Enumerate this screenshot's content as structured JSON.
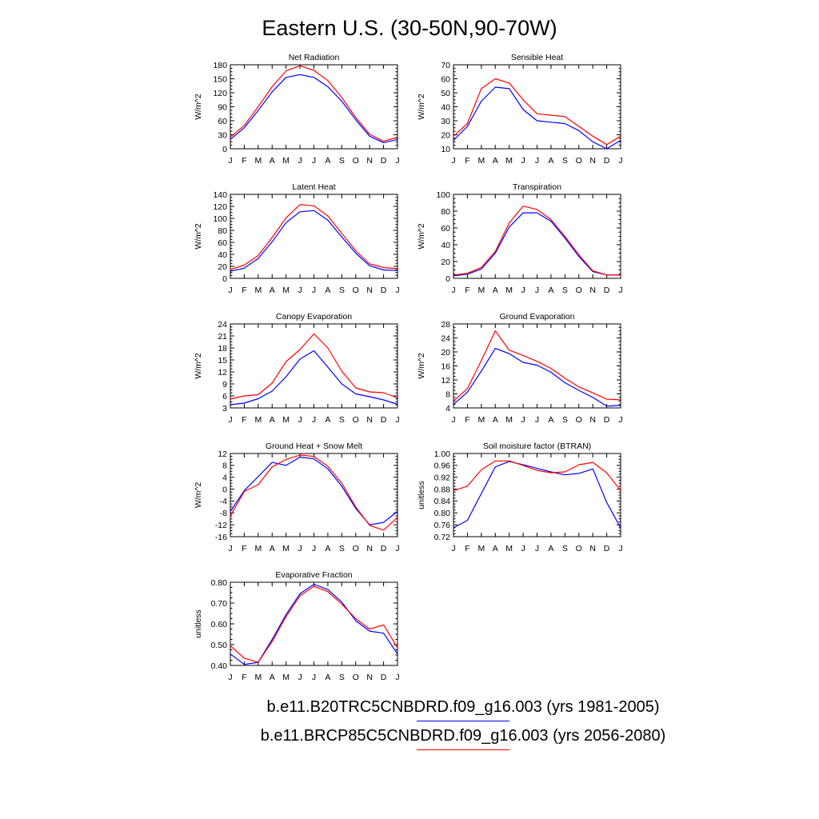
{
  "title": "Eastern U.S. (30-50N,90-70W)",
  "colors": {
    "series_1": "#0000ff",
    "series_2": "#ff0000",
    "axes": "#000000"
  },
  "legend": [
    {
      "label": "b.e11.B20TRC5CNBDRD.f09_g16.003 (yrs 1981-2005)",
      "color": "#0000ff"
    },
    {
      "label": "b.e11.BRCP85C5CNBDRD.f09_g16.003 (yrs 2056-2080)",
      "color": "#ff0000"
    }
  ],
  "chart_data": [
    {
      "type": "line",
      "title": "Net Radiation",
      "ylabel": "W/m^2",
      "categories": [
        "J",
        "F",
        "M",
        "A",
        "M",
        "J",
        "J",
        "A",
        "S",
        "O",
        "N",
        "D",
        "J"
      ],
      "ylim": [
        0,
        180
      ],
      "yticks": [
        "0",
        "30",
        "60",
        "90",
        "120",
        "150",
        "180"
      ],
      "series": [
        {
          "color": "#0000ff",
          "values": [
            20,
            45,
            82,
            122,
            153,
            159,
            153,
            133,
            102,
            62,
            27,
            13,
            20
          ]
        },
        {
          "color": "#ff0000",
          "values": [
            25,
            50,
            90,
            133,
            167,
            178,
            168,
            146,
            110,
            67,
            31,
            16,
            25
          ]
        }
      ]
    },
    {
      "type": "line",
      "title": "Sensible Heat",
      "ylabel": "W/m^2",
      "categories": [
        "J",
        "F",
        "M",
        "A",
        "M",
        "J",
        "J",
        "A",
        "S",
        "O",
        "N",
        "D",
        "J"
      ],
      "ylim": [
        10,
        70
      ],
      "yticks": [
        "10",
        "20",
        "30",
        "40",
        "50",
        "60",
        "70"
      ],
      "series": [
        {
          "color": "#0000ff",
          "values": [
            16,
            26,
            44,
            54,
            53,
            38,
            30,
            29,
            28,
            23,
            15,
            10,
            16
          ]
        },
        {
          "color": "#ff0000",
          "values": [
            19,
            28,
            53,
            60,
            57,
            45,
            35,
            34,
            33,
            26,
            19,
            13,
            19
          ]
        }
      ]
    },
    {
      "type": "line",
      "title": "Latent Heat",
      "ylabel": "W/m^2",
      "categories": [
        "J",
        "F",
        "M",
        "A",
        "M",
        "J",
        "J",
        "A",
        "S",
        "O",
        "N",
        "D",
        "J"
      ],
      "ylim": [
        0,
        140
      ],
      "yticks": [
        "0",
        "20",
        "40",
        "60",
        "80",
        "100",
        "120",
        "140"
      ],
      "series": [
        {
          "color": "#0000ff",
          "values": [
            12,
            17,
            33,
            61,
            93,
            111,
            113,
            97,
            69,
            42,
            21,
            14,
            13
          ]
        },
        {
          "color": "#ff0000",
          "values": [
            15,
            22,
            38,
            68,
            101,
            123,
            121,
            104,
            75,
            46,
            24,
            18,
            16
          ]
        }
      ]
    },
    {
      "type": "line",
      "title": "Transpiration",
      "ylabel": "W/m^2",
      "categories": [
        "J",
        "F",
        "M",
        "A",
        "M",
        "J",
        "J",
        "A",
        "S",
        "O",
        "N",
        "D",
        "J"
      ],
      "ylim": [
        0,
        100
      ],
      "yticks": [
        "0",
        "20",
        "40",
        "60",
        "80",
        "100"
      ],
      "series": [
        {
          "color": "#0000ff",
          "values": [
            3,
            5,
            11,
            30,
            61,
            78,
            78,
            68,
            48,
            26,
            8,
            4,
            4
          ]
        },
        {
          "color": "#ff0000",
          "values": [
            4,
            6,
            13,
            32,
            66,
            86,
            82,
            70,
            50,
            28,
            9,
            4,
            4
          ]
        }
      ]
    },
    {
      "type": "line",
      "title": "Canopy Evaporation",
      "ylabel": "W/m^2",
      "categories": [
        "J",
        "F",
        "M",
        "A",
        "M",
        "J",
        "J",
        "A",
        "S",
        "O",
        "N",
        "D",
        "J"
      ],
      "ylim": [
        3,
        24
      ],
      "yticks": [
        "3",
        "6",
        "9",
        "12",
        "15",
        "18",
        "21",
        "24"
      ],
      "series": [
        {
          "color": "#0000ff",
          "values": [
            3.8,
            4.2,
            5.3,
            7.2,
            10.8,
            15.2,
            17.3,
            13.2,
            9.0,
            6.5,
            5.8,
            5.0,
            3.9
          ]
        },
        {
          "color": "#ff0000",
          "values": [
            5.2,
            6.0,
            6.3,
            9.2,
            14.6,
            17.6,
            21.5,
            18.0,
            12.2,
            8.0,
            7.0,
            6.8,
            5.5
          ]
        }
      ]
    },
    {
      "type": "line",
      "title": "Ground Evaporation",
      "ylabel": "W/m^2",
      "categories": [
        "J",
        "F",
        "M",
        "A",
        "M",
        "J",
        "J",
        "A",
        "S",
        "O",
        "N",
        "D",
        "J"
      ],
      "ylim": [
        4,
        28
      ],
      "yticks": [
        "4",
        "8",
        "12",
        "16",
        "20",
        "24",
        "28"
      ],
      "series": [
        {
          "color": "#0000ff",
          "values": [
            5.0,
            8.5,
            14.5,
            21.0,
            19.5,
            17.0,
            16.2,
            14.2,
            11.2,
            9.0,
            7.0,
            4.5,
            4.7
          ]
        },
        {
          "color": "#ff0000",
          "values": [
            6.0,
            9.5,
            17.5,
            26.0,
            20.5,
            19.0,
            17.3,
            15.3,
            12.5,
            10.0,
            8.3,
            6.5,
            6.3
          ]
        }
      ]
    },
    {
      "type": "line",
      "title": "Ground Heat + Snow Melt",
      "ylabel": "W/m^2",
      "categories": [
        "J",
        "F",
        "M",
        "A",
        "M",
        "J",
        "J",
        "A",
        "S",
        "O",
        "N",
        "D",
        "J"
      ],
      "ylim": [
        -16,
        12
      ],
      "yticks": [
        "-16",
        "-12",
        "-8",
        "-4",
        "0",
        "4",
        "8",
        "12"
      ],
      "series": [
        {
          "color": "#0000ff",
          "values": [
            -7.5,
            -0.5,
            4.2,
            9.0,
            8.0,
            10.8,
            10.2,
            6.8,
            1.0,
            -6.5,
            -12.0,
            -11.2,
            -7.5
          ]
        },
        {
          "color": "#ff0000",
          "values": [
            -9.0,
            -0.8,
            1.5,
            7.5,
            10.0,
            11.5,
            11.0,
            7.7,
            2.0,
            -6.0,
            -12.2,
            -13.8,
            -9.5
          ]
        }
      ]
    },
    {
      "type": "line",
      "title": "Soil moisture factor (BTRAN)",
      "ylabel": "unitless",
      "categories": [
        "J",
        "F",
        "M",
        "A",
        "M",
        "J",
        "J",
        "A",
        "S",
        "O",
        "N",
        "D",
        "J"
      ],
      "ylim": [
        0.72,
        1.0
      ],
      "yticks": [
        "0.72",
        "0.76",
        "0.80",
        "0.84",
        "0.88",
        "0.92",
        "0.96",
        "1.00"
      ],
      "series": [
        {
          "color": "#0000ff",
          "values": [
            0.75,
            0.775,
            0.865,
            0.955,
            0.973,
            0.962,
            0.95,
            0.938,
            0.928,
            0.933,
            0.948,
            0.835,
            0.75
          ]
        },
        {
          "color": "#ff0000",
          "values": [
            0.875,
            0.89,
            0.945,
            0.975,
            0.975,
            0.96,
            0.943,
            0.935,
            0.938,
            0.962,
            0.97,
            0.935,
            0.875
          ]
        }
      ]
    },
    {
      "type": "line",
      "title": "Evaporative Fraction",
      "ylabel": "unitless",
      "categories": [
        "J",
        "F",
        "M",
        "A",
        "M",
        "J",
        "J",
        "A",
        "S",
        "O",
        "N",
        "D",
        "J"
      ],
      "ylim": [
        0.4,
        0.8
      ],
      "yticks": [
        "0.40",
        "0.50",
        "0.60",
        "0.70",
        "0.80"
      ],
      "series": [
        {
          "color": "#0000ff",
          "values": [
            0.455,
            0.405,
            0.415,
            0.525,
            0.645,
            0.745,
            0.79,
            0.765,
            0.705,
            0.615,
            0.565,
            0.555,
            0.455
          ]
        },
        {
          "color": "#ff0000",
          "values": [
            0.495,
            0.435,
            0.415,
            0.515,
            0.635,
            0.735,
            0.78,
            0.755,
            0.695,
            0.625,
            0.575,
            0.595,
            0.485
          ]
        }
      ]
    }
  ]
}
